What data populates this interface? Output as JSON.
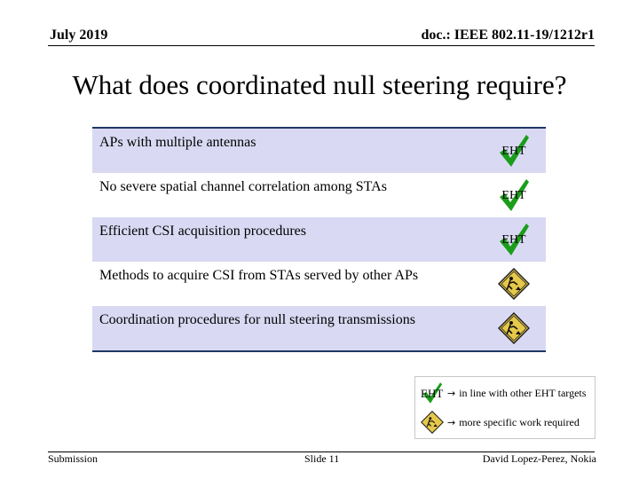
{
  "header": {
    "date": "July 2019",
    "doc": "doc.: IEEE 802.11-19/1212r1"
  },
  "title": "What does coordinated null steering require?",
  "requirements": [
    {
      "text": "APs with multiple antennas",
      "status": "eht"
    },
    {
      "text": "No severe spatial channel correlation among STAs",
      "status": "eht"
    },
    {
      "text": "Efficient CSI acquisition procedures",
      "status": "eht"
    },
    {
      "text": "Methods to acquire CSI from STAs served by other APs",
      "status": "work"
    },
    {
      "text": "Coordination procedures for null steering transmissions",
      "status": "work"
    }
  ],
  "eht_label": "EHT",
  "legend": {
    "eht_label": "EHT",
    "eht_text": "in line with other EHT targets",
    "work_text": "more specific work required"
  },
  "footer": {
    "left": "Submission",
    "middle": "Slide 11",
    "right": "David Lopez-Perez, Nokia"
  },
  "colors": {
    "check": "#1a9e1a",
    "row_shade": "#d9d9f3",
    "table_border": "#1f3864",
    "sign": "#e6c84a"
  },
  "icons": {
    "eht": "green-check-icon",
    "work": "under-construction-sign-icon"
  }
}
